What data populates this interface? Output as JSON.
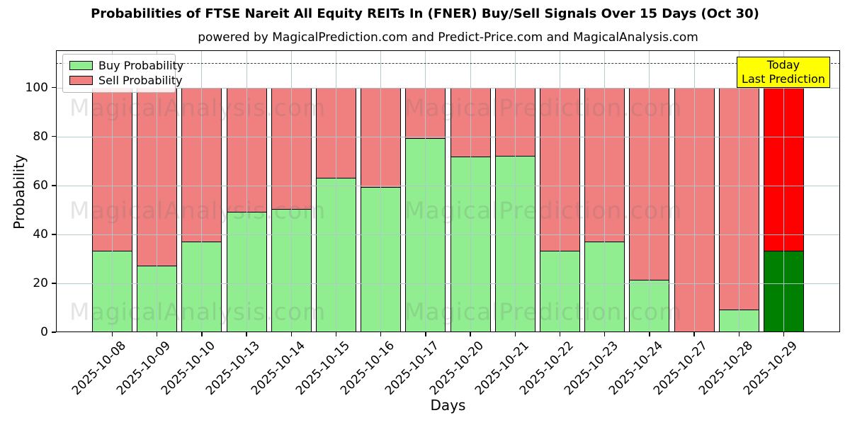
{
  "title": "Probabilities of FTSE Nareit All Equity REITs In (FNER) Buy/Sell Signals Over 15 Days (Oct 30)",
  "subtitle": "powered by MagicalPrediction.com and Predict-Price.com and MagicalAnalysis.com",
  "watermarks": {
    "left_text": "MagicalAnalysis.com",
    "right_text": "MagicalPrediction.com"
  },
  "annotation": {
    "line1": "Today",
    "line2": "Last Prediction",
    "background": "#ffff00"
  },
  "legend": [
    {
      "label": "Buy Probability",
      "color": "#90EE90"
    },
    {
      "label": "Sell Probability",
      "color": "#F08080"
    }
  ],
  "axes": {
    "xlabel": "Days",
    "ylabel": "Probability",
    "yticks": [
      0,
      20,
      40,
      60,
      80,
      100
    ],
    "ylim": [
      0,
      115.2
    ],
    "dashed_line_y": 110,
    "grid": "on"
  },
  "chart_data": {
    "type": "bar",
    "stacked": true,
    "title": "Probabilities of FTSE Nareit All Equity REITs In (FNER) Buy/Sell Signals Over 15 Days (Oct 30)",
    "xlabel": "Days",
    "ylabel": "Probability",
    "ylim": [
      0,
      115.2
    ],
    "legend_position": "upper left",
    "categories": [
      "2025-10-08",
      "2025-10-09",
      "2025-10-10",
      "2025-10-13",
      "2025-10-14",
      "2025-10-15",
      "2025-10-16",
      "2025-10-17",
      "2025-10-20",
      "2025-10-21",
      "2025-10-22",
      "2025-10-23",
      "2025-10-24",
      "2025-10-27",
      "2025-10-28",
      "2025-10-29"
    ],
    "series": [
      {
        "name": "Buy Probability",
        "color": "#90EE90",
        "values": [
          33.5,
          27.5,
          37.3,
          49.5,
          50.4,
          63.2,
          59.5,
          79.6,
          72.1,
          72.2,
          33.4,
          37.3,
          21.5,
          0,
          9.4,
          33.5
        ]
      },
      {
        "name": "Sell Probability",
        "color": "#F08080",
        "values": [
          66.5,
          72.5,
          62.7,
          50.5,
          49.6,
          36.8,
          40.5,
          20.4,
          27.9,
          27.8,
          66.6,
          62.7,
          78.5,
          100,
          90.6,
          66.5
        ]
      }
    ],
    "today_bar": {
      "category": "2025-10-29",
      "buy_color": "#008000",
      "sell_color": "#FF0000"
    },
    "bar_edge_color": "#000000",
    "grid_color": "#b2c6cb",
    "dashed_line_y": 110
  }
}
